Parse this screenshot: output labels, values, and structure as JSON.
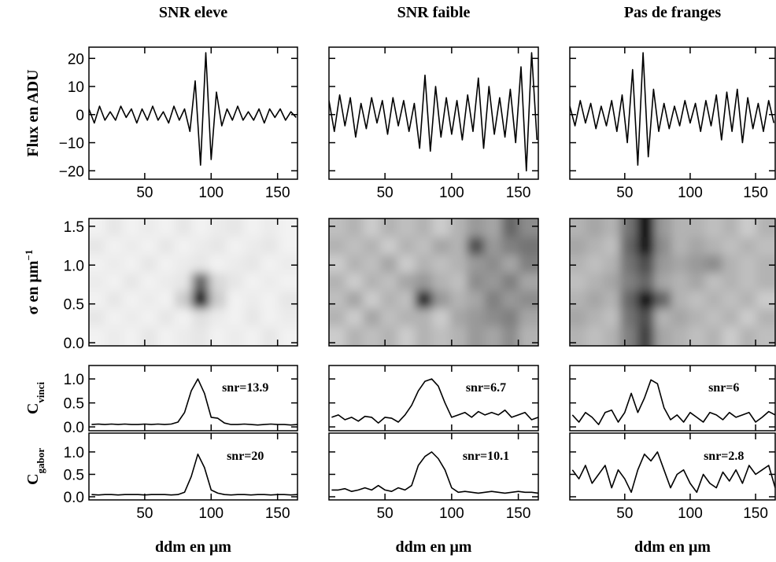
{
  "chart_data": [
    {
      "type": "line",
      "title": "SNR eleve",
      "ylabel": "Flux en ADU",
      "color": "#000000",
      "x": [
        8,
        12,
        16,
        20,
        24,
        28,
        32,
        36,
        40,
        44,
        48,
        52,
        56,
        60,
        64,
        68,
        72,
        76,
        80,
        84,
        88,
        92,
        96,
        100,
        104,
        108,
        112,
        116,
        120,
        124,
        128,
        132,
        136,
        140,
        144,
        148,
        152,
        156,
        160,
        164
      ],
      "values": [
        2,
        -3,
        3,
        -2,
        1,
        -2,
        3,
        -1,
        2,
        -3,
        2,
        -2,
        3,
        -2,
        1,
        -3,
        3,
        -2,
        2,
        -6,
        12,
        -18,
        22,
        -16,
        8,
        -4,
        2,
        -2,
        3,
        -2,
        1,
        -2,
        2,
        -3,
        2,
        -1,
        2,
        -2,
        1,
        -1
      ],
      "xlim": [
        8,
        165
      ],
      "ylim": [
        -23,
        24
      ],
      "xticks": [
        50,
        100,
        150
      ],
      "xtick_labels": true,
      "yticks": [
        {
          "value": -20,
          "label": "−20"
        },
        {
          "value": -10,
          "label": "−10"
        },
        0,
        10,
        20
      ],
      "ytick_labels": true
    },
    {
      "type": "line",
      "title": "SNR faible",
      "color": "#000000",
      "x": [
        8,
        12,
        16,
        20,
        24,
        28,
        32,
        36,
        40,
        44,
        48,
        52,
        56,
        60,
        64,
        68,
        72,
        76,
        80,
        84,
        88,
        92,
        96,
        100,
        104,
        108,
        112,
        116,
        120,
        124,
        128,
        132,
        136,
        140,
        144,
        148,
        152,
        156,
        160,
        164
      ],
      "values": [
        5,
        -6,
        7,
        -4,
        6,
        -8,
        4,
        -5,
        6,
        -3,
        5,
        -7,
        6,
        -4,
        5,
        -6,
        4,
        -12,
        14,
        -13,
        10,
        -8,
        6,
        -7,
        5,
        -9,
        7,
        -6,
        13,
        -12,
        10,
        -7,
        6,
        -8,
        9,
        -10,
        17,
        -20,
        22,
        -9
      ],
      "xlim": [
        8,
        165
      ],
      "ylim": [
        -23,
        24
      ],
      "xticks": [
        50,
        100,
        150
      ],
      "xtick_labels": true,
      "yticks": [
        -20,
        -10,
        0,
        10,
        20
      ],
      "ytick_labels": false
    },
    {
      "type": "line",
      "title": "Pas de franges",
      "color": "#000000",
      "x": [
        8,
        12,
        16,
        20,
        24,
        28,
        32,
        36,
        40,
        44,
        48,
        52,
        56,
        60,
        64,
        68,
        72,
        76,
        80,
        84,
        88,
        92,
        96,
        100,
        104,
        108,
        112,
        116,
        120,
        124,
        128,
        132,
        136,
        140,
        144,
        148,
        152,
        156,
        160,
        164
      ],
      "values": [
        3,
        -4,
        5,
        -3,
        4,
        -5,
        3,
        -4,
        5,
        -6,
        7,
        -10,
        16,
        -18,
        22,
        -15,
        9,
        -6,
        4,
        -5,
        3,
        -4,
        5,
        -3,
        4,
        -6,
        5,
        -4,
        7,
        -9,
        8,
        -6,
        9,
        -10,
        6,
        -5,
        4,
        -6,
        5,
        -3
      ],
      "xlim": [
        8,
        165
      ],
      "ylim": [
        -23,
        24
      ],
      "xticks": [
        50,
        100,
        150
      ],
      "xtick_labels": true,
      "yticks": [
        -20,
        -10,
        0,
        10,
        20
      ],
      "ytick_labels": false
    },
    {
      "type": "heatmap",
      "ylabel": "σ en μm",
      "ylabel_sup": "−1",
      "x": [
        14,
        27,
        40,
        53,
        66,
        79,
        92,
        105,
        118,
        131,
        144,
        157
      ],
      "y": [
        0.1,
        0.33,
        0.56,
        0.79,
        1.02,
        1.25,
        1.48
      ],
      "z": [
        [
          0.05,
          0.08,
          0.05,
          0.1,
          0.05,
          0.08,
          0.1,
          0.05,
          0.08,
          0.05,
          0.1,
          0.05
        ],
        [
          0.1,
          0.05,
          0.08,
          0.05,
          0.1,
          0.05,
          0.12,
          0.08,
          0.05,
          0.1,
          0.05,
          0.08
        ],
        [
          0.05,
          0.1,
          0.05,
          0.08,
          0.05,
          0.2,
          0.9,
          0.2,
          0.05,
          0.08,
          0.05,
          0.1
        ],
        [
          0.08,
          0.05,
          0.1,
          0.05,
          0.08,
          0.1,
          0.6,
          0.15,
          0.1,
          0.05,
          0.08,
          0.05
        ],
        [
          0.05,
          0.08,
          0.05,
          0.1,
          0.05,
          0.08,
          0.1,
          0.05,
          0.08,
          0.1,
          0.05,
          0.08
        ],
        [
          0.1,
          0.05,
          0.08,
          0.05,
          0.1,
          0.05,
          0.08,
          0.1,
          0.05,
          0.08,
          0.1,
          0.05
        ],
        [
          0.05,
          0.1,
          0.05,
          0.08,
          0.05,
          0.1,
          0.05,
          0.08,
          0.1,
          0.05,
          0.08,
          0.05
        ]
      ],
      "xlim": [
        8,
        165
      ],
      "ylim": [
        -0.04,
        1.6
      ],
      "xticks": [
        50,
        100,
        150
      ],
      "xtick_labels": false,
      "yticks": [
        {
          "value": 0,
          "label": "0.0"
        },
        {
          "value": 0.5,
          "label": "0.5"
        },
        {
          "value": 1,
          "label": "1.0"
        },
        {
          "value": 1.5,
          "label": "1.5"
        }
      ],
      "ytick_labels": true
    },
    {
      "type": "heatmap",
      "x": [
        14,
        27,
        40,
        53,
        66,
        79,
        92,
        105,
        118,
        131,
        144,
        157
      ],
      "y": [
        0.1,
        0.33,
        0.56,
        0.79,
        1.02,
        1.25,
        1.48
      ],
      "z": [
        [
          0.2,
          0.3,
          0.25,
          0.3,
          0.2,
          0.3,
          0.25,
          0.3,
          0.4,
          0.35,
          0.45,
          0.3
        ],
        [
          0.3,
          0.2,
          0.35,
          0.25,
          0.3,
          0.3,
          0.2,
          0.35,
          0.4,
          0.45,
          0.5,
          0.35
        ],
        [
          0.25,
          0.35,
          0.2,
          0.3,
          0.25,
          0.85,
          0.4,
          0.3,
          0.35,
          0.5,
          0.4,
          0.45
        ],
        [
          0.3,
          0.2,
          0.3,
          0.25,
          0.35,
          0.4,
          0.3,
          0.25,
          0.45,
          0.4,
          0.5,
          0.35
        ],
        [
          0.2,
          0.3,
          0.25,
          0.35,
          0.2,
          0.3,
          0.25,
          0.3,
          0.4,
          0.45,
          0.35,
          0.5
        ],
        [
          0.3,
          0.25,
          0.3,
          0.2,
          0.3,
          0.25,
          0.35,
          0.3,
          0.7,
          0.4,
          0.5,
          0.55
        ],
        [
          0.25,
          0.3,
          0.2,
          0.3,
          0.25,
          0.3,
          0.2,
          0.3,
          0.4,
          0.35,
          0.6,
          0.45
        ]
      ],
      "xlim": [
        8,
        165
      ],
      "ylim": [
        -0.04,
        1.6
      ],
      "xticks": [
        50,
        100,
        150
      ],
      "xtick_labels": false,
      "yticks": [
        0,
        0.5,
        1,
        1.5
      ],
      "ytick_labels": false
    },
    {
      "type": "heatmap",
      "x": [
        14,
        27,
        40,
        53,
        66,
        79,
        92,
        105,
        118,
        131,
        144,
        157
      ],
      "y": [
        0.1,
        0.33,
        0.56,
        0.79,
        1.02,
        1.25,
        1.48
      ],
      "z": [
        [
          0.3,
          0.25,
          0.3,
          0.5,
          0.75,
          0.35,
          0.3,
          0.25,
          0.3,
          0.2,
          0.3,
          0.25
        ],
        [
          0.35,
          0.3,
          0.25,
          0.55,
          0.7,
          0.3,
          0.35,
          0.3,
          0.25,
          0.3,
          0.2,
          0.3
        ],
        [
          0.3,
          0.35,
          0.3,
          0.6,
          0.95,
          0.6,
          0.3,
          0.25,
          0.3,
          0.25,
          0.3,
          0.2
        ],
        [
          0.25,
          0.3,
          0.35,
          0.5,
          0.6,
          0.35,
          0.3,
          0.35,
          0.25,
          0.3,
          0.25,
          0.3
        ],
        [
          0.3,
          0.25,
          0.3,
          0.55,
          0.7,
          0.4,
          0.35,
          0.4,
          0.45,
          0.3,
          0.25,
          0.3
        ],
        [
          0.35,
          0.3,
          0.25,
          0.6,
          0.95,
          0.45,
          0.3,
          0.35,
          0.3,
          0.25,
          0.3,
          0.25
        ],
        [
          0.3,
          0.35,
          0.3,
          0.55,
          1.0,
          0.4,
          0.3,
          0.3,
          0.25,
          0.3,
          0.2,
          0.3
        ]
      ],
      "xlim": [
        8,
        165
      ],
      "ylim": [
        -0.04,
        1.6
      ],
      "xticks": [
        50,
        100,
        150
      ],
      "xtick_labels": false,
      "yticks": [
        0,
        0.5,
        1,
        1.5
      ],
      "ytick_labels": false
    },
    {
      "type": "line",
      "ylabel": "C",
      "ylabel_sub": "vinci",
      "annotation": "snr=13.9",
      "color": "#000000",
      "x": [
        10,
        15,
        20,
        25,
        30,
        35,
        40,
        45,
        50,
        55,
        60,
        65,
        70,
        75,
        80,
        85,
        90,
        95,
        100,
        105,
        110,
        115,
        120,
        125,
        130,
        135,
        140,
        145,
        150,
        155,
        160,
        165
      ],
      "values": [
        0.05,
        0.06,
        0.05,
        0.06,
        0.05,
        0.06,
        0.05,
        0.05,
        0.06,
        0.05,
        0.06,
        0.05,
        0.06,
        0.1,
        0.3,
        0.75,
        1.0,
        0.7,
        0.2,
        0.18,
        0.08,
        0.05,
        0.05,
        0.06,
        0.05,
        0.04,
        0.05,
        0.06,
        0.05,
        0.05,
        0.04,
        0.05
      ],
      "xlim": [
        8,
        165
      ],
      "ylim": [
        -0.08,
        1.28
      ],
      "xticks": [
        50,
        100,
        150
      ],
      "xtick_labels": false,
      "yticks": [
        {
          "value": 0,
          "label": "0.0"
        },
        {
          "value": 0.5,
          "label": "0.5"
        },
        {
          "value": 1,
          "label": "1.0"
        }
      ],
      "ytick_labels": true
    },
    {
      "type": "line",
      "annotation": "snr=6.7",
      "color": "#000000",
      "x": [
        10,
        15,
        20,
        25,
        30,
        35,
        40,
        45,
        50,
        55,
        60,
        65,
        70,
        75,
        80,
        85,
        90,
        95,
        100,
        105,
        110,
        115,
        120,
        125,
        130,
        135,
        140,
        145,
        150,
        155,
        160,
        165
      ],
      "values": [
        0.2,
        0.25,
        0.15,
        0.2,
        0.12,
        0.22,
        0.2,
        0.08,
        0.2,
        0.18,
        0.1,
        0.25,
        0.45,
        0.75,
        0.95,
        1.0,
        0.85,
        0.5,
        0.2,
        0.25,
        0.3,
        0.2,
        0.32,
        0.25,
        0.3,
        0.25,
        0.35,
        0.2,
        0.25,
        0.3,
        0.15,
        0.2
      ],
      "xlim": [
        8,
        165
      ],
      "ylim": [
        -0.08,
        1.28
      ],
      "xticks": [
        50,
        100,
        150
      ],
      "xtick_labels": false,
      "yticks": [
        0,
        0.5,
        1
      ],
      "ytick_labels": false
    },
    {
      "type": "line",
      "annotation": "snr=6",
      "color": "#000000",
      "x": [
        10,
        15,
        20,
        25,
        30,
        35,
        40,
        45,
        50,
        55,
        60,
        65,
        70,
        75,
        80,
        85,
        90,
        95,
        100,
        105,
        110,
        115,
        120,
        125,
        130,
        135,
        140,
        145,
        150,
        155,
        160,
        165
      ],
      "values": [
        0.25,
        0.1,
        0.3,
        0.2,
        0.05,
        0.3,
        0.35,
        0.1,
        0.3,
        0.7,
        0.3,
        0.6,
        0.98,
        0.9,
        0.4,
        0.15,
        0.25,
        0.1,
        0.3,
        0.2,
        0.1,
        0.3,
        0.25,
        0.15,
        0.3,
        0.2,
        0.25,
        0.3,
        0.1,
        0.2,
        0.32,
        0.25
      ],
      "xlim": [
        8,
        165
      ],
      "ylim": [
        -0.08,
        1.28
      ],
      "xticks": [
        50,
        100,
        150
      ],
      "xtick_labels": false,
      "yticks": [
        0,
        0.5,
        1
      ],
      "ytick_labels": false
    },
    {
      "type": "line",
      "ylabel": "C",
      "ylabel_sub": "gabor",
      "annotation": "snr=20",
      "xlabel": "ddm en μm",
      "color": "#000000",
      "x": [
        10,
        15,
        20,
        25,
        30,
        35,
        40,
        45,
        50,
        55,
        60,
        65,
        70,
        75,
        80,
        85,
        90,
        95,
        100,
        105,
        110,
        115,
        120,
        125,
        130,
        135,
        140,
        145,
        150,
        155,
        160,
        165
      ],
      "values": [
        0.05,
        0.04,
        0.05,
        0.05,
        0.04,
        0.05,
        0.05,
        0.05,
        0.04,
        0.05,
        0.05,
        0.05,
        0.04,
        0.05,
        0.1,
        0.45,
        0.95,
        0.65,
        0.15,
        0.08,
        0.05,
        0.04,
        0.05,
        0.05,
        0.04,
        0.05,
        0.05,
        0.04,
        0.05,
        0.05,
        0.04,
        0.05
      ],
      "xlim": [
        8,
        165
      ],
      "ylim": [
        -0.07,
        1.42
      ],
      "xticks": [
        50,
        100,
        150
      ],
      "xtick_labels": true,
      "yticks": [
        {
          "value": 0,
          "label": "0.0"
        },
        {
          "value": 0.5,
          "label": "0.5"
        },
        {
          "value": 1,
          "label": "1.0"
        }
      ],
      "ytick_labels": true
    },
    {
      "type": "line",
      "annotation": "snr=10.1",
      "xlabel": "ddm en μm",
      "color": "#000000",
      "x": [
        10,
        15,
        20,
        25,
        30,
        35,
        40,
        45,
        50,
        55,
        60,
        65,
        70,
        75,
        80,
        85,
        90,
        95,
        100,
        105,
        110,
        115,
        120,
        125,
        130,
        135,
        140,
        145,
        150,
        155,
        160,
        165
      ],
      "values": [
        0.15,
        0.15,
        0.18,
        0.12,
        0.15,
        0.2,
        0.15,
        0.25,
        0.15,
        0.12,
        0.2,
        0.15,
        0.25,
        0.7,
        0.9,
        1.0,
        0.85,
        0.6,
        0.2,
        0.1,
        0.12,
        0.1,
        0.08,
        0.1,
        0.12,
        0.1,
        0.08,
        0.1,
        0.12,
        0.1,
        0.1,
        0.08
      ],
      "xlim": [
        8,
        165
      ],
      "ylim": [
        -0.07,
        1.42
      ],
      "xticks": [
        50,
        100,
        150
      ],
      "xtick_labels": true,
      "yticks": [
        0,
        0.5,
        1
      ],
      "ytick_labels": false
    },
    {
      "type": "line",
      "annotation": "snr=2.8",
      "xlabel": "ddm en μm",
      "color": "#000000",
      "x": [
        10,
        15,
        20,
        25,
        30,
        35,
        40,
        45,
        50,
        55,
        60,
        65,
        70,
        75,
        80,
        85,
        90,
        95,
        100,
        105,
        110,
        115,
        120,
        125,
        130,
        135,
        140,
        145,
        150,
        155,
        160,
        165
      ],
      "values": [
        0.6,
        0.4,
        0.7,
        0.3,
        0.5,
        0.7,
        0.2,
        0.6,
        0.4,
        0.1,
        0.6,
        0.95,
        0.8,
        1.0,
        0.6,
        0.2,
        0.5,
        0.6,
        0.3,
        0.1,
        0.5,
        0.3,
        0.2,
        0.55,
        0.35,
        0.6,
        0.3,
        0.7,
        0.5,
        0.6,
        0.7,
        0.2
      ],
      "xlim": [
        8,
        165
      ],
      "ylim": [
        -0.07,
        1.42
      ],
      "xticks": [
        50,
        100,
        150
      ],
      "xtick_labels": true,
      "yticks": [
        0,
        0.5,
        1
      ],
      "ytick_labels": false
    }
  ]
}
